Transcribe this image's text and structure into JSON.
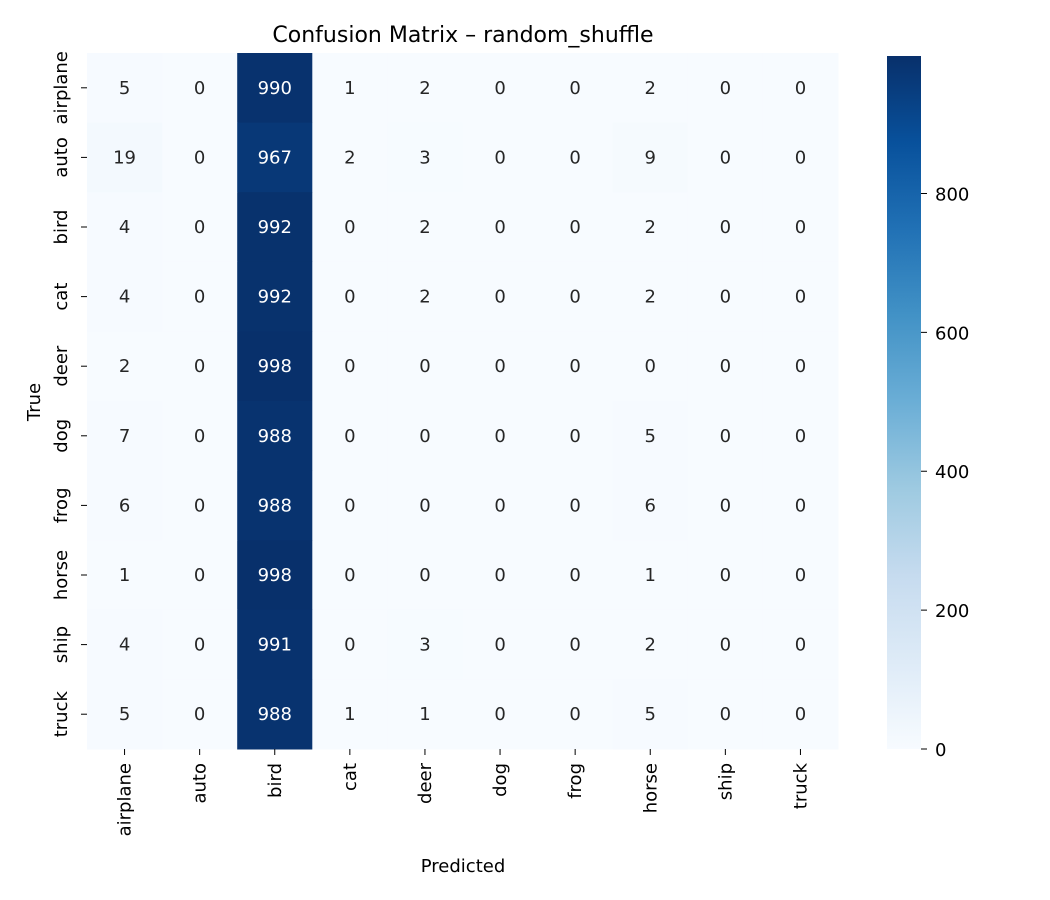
{
  "chart_data": {
    "type": "heatmap",
    "title": "Confusion Matrix – random_shuffle",
    "xlabel": "Predicted",
    "ylabel": "True",
    "x_categories": [
      "airplane",
      "auto",
      "bird",
      "cat",
      "deer",
      "dog",
      "frog",
      "horse",
      "ship",
      "truck"
    ],
    "y_categories": [
      "airplane",
      "auto",
      "bird",
      "cat",
      "deer",
      "dog",
      "frog",
      "horse",
      "ship",
      "truck"
    ],
    "values": [
      [
        5,
        0,
        990,
        1,
        2,
        0,
        0,
        2,
        0,
        0
      ],
      [
        19,
        0,
        967,
        2,
        3,
        0,
        0,
        9,
        0,
        0
      ],
      [
        4,
        0,
        992,
        0,
        2,
        0,
        0,
        2,
        0,
        0
      ],
      [
        4,
        0,
        992,
        0,
        2,
        0,
        0,
        2,
        0,
        0
      ],
      [
        2,
        0,
        998,
        0,
        0,
        0,
        0,
        0,
        0,
        0
      ],
      [
        7,
        0,
        988,
        0,
        0,
        0,
        0,
        5,
        0,
        0
      ],
      [
        6,
        0,
        988,
        0,
        0,
        0,
        0,
        6,
        0,
        0
      ],
      [
        1,
        0,
        998,
        0,
        0,
        0,
        0,
        1,
        0,
        0
      ],
      [
        4,
        0,
        991,
        0,
        3,
        0,
        0,
        2,
        0,
        0
      ],
      [
        5,
        0,
        988,
        1,
        1,
        0,
        0,
        5,
        0,
        0
      ]
    ],
    "colormap": "Blues",
    "colorbar": {
      "ticks": [
        0,
        200,
        400,
        600,
        800
      ],
      "range": [
        0,
        998
      ]
    },
    "grid": false,
    "legend": "colorbar-right"
  }
}
